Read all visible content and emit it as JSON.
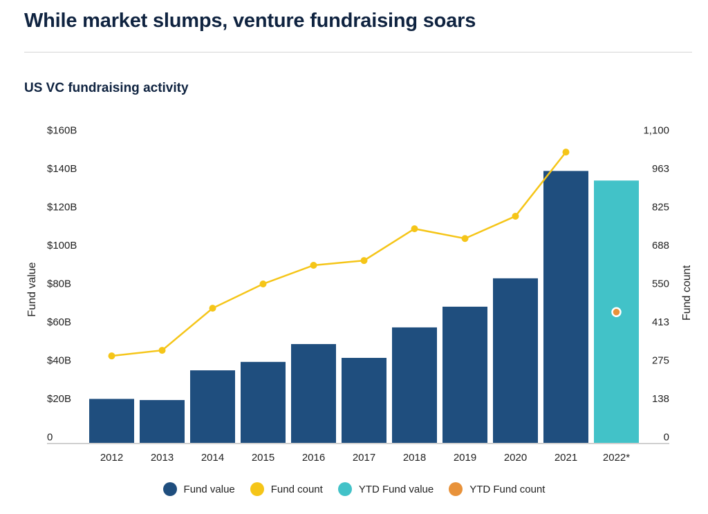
{
  "header": {
    "title": "While market slumps, venture fundraising soars",
    "subtitle": "US VC fundraising activity"
  },
  "chart_data": {
    "type": "bar",
    "categories": [
      "2012",
      "2013",
      "2014",
      "2015",
      "2016",
      "2017",
      "2018",
      "2019",
      "2020",
      "2021",
      "2022*"
    ],
    "series": [
      {
        "name": "Fund value",
        "type": "bar",
        "axis": "left",
        "color": "#1f4e7e",
        "values": [
          23.1,
          22.5,
          38,
          42.4,
          51.7,
          44.5,
          60.4,
          71.2,
          86,
          142,
          null
        ]
      },
      {
        "name": "Fund count",
        "type": "line",
        "axis": "right",
        "color": "#f5c518",
        "values": [
          313,
          333,
          484,
          571,
          638,
          655,
          769,
          734,
          814,
          1044,
          null
        ]
      },
      {
        "name": "YTD Fund value",
        "type": "bar",
        "axis": "left",
        "color": "#42c2c8",
        "values": [
          null,
          null,
          null,
          null,
          null,
          null,
          null,
          null,
          null,
          null,
          137
        ]
      },
      {
        "name": "YTD Fund count",
        "type": "point",
        "axis": "right",
        "color": "#e8923a",
        "values": [
          null,
          null,
          null,
          null,
          null,
          null,
          null,
          null,
          null,
          null,
          470
        ]
      }
    ],
    "ylabel": "Fund value",
    "y2label": "Fund count",
    "ylim": [
      0,
      160
    ],
    "y2lim": [
      0,
      1100
    ],
    "yticks": [
      "0",
      "$20B",
      "$40B",
      "$60B",
      "$80B",
      "$100B",
      "$120B",
      "$140B",
      "$160B"
    ],
    "y2ticks": [
      "0",
      "138",
      "275",
      "413",
      "550",
      "688",
      "825",
      "963",
      "1,100"
    ],
    "grid": false,
    "legend": "bottom"
  }
}
